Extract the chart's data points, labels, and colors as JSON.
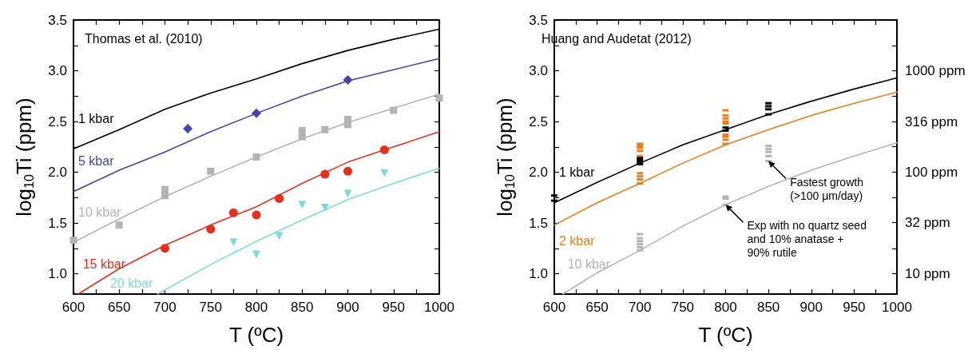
{
  "chart_data": [
    {
      "type": "line",
      "title": "Thomas et al. (2010)",
      "xlabel": "T (ºC)",
      "ylabel": "log$_{10}$Ti (ppm)",
      "legend": false,
      "grid": false,
      "xlim": [
        600,
        1000
      ],
      "xticks": [
        600,
        {
          "value": 625,
          "label": null
        },
        650,
        {
          "value": 675,
          "label": null
        },
        700,
        {
          "value": 725,
          "label": null
        },
        750,
        {
          "value": 775,
          "label": null
        },
        800,
        {
          "value": 825,
          "label": null
        },
        850,
        {
          "value": 875,
          "label": null
        },
        900,
        {
          "value": 925,
          "label": null
        },
        950,
        {
          "value": 975,
          "label": null
        },
        1000
      ],
      "ylim": [
        0.8,
        3.5
      ],
      "yticks": [
        {
          "value": 1,
          "label": "1.0"
        },
        {
          "value": 1.25,
          "label": null
        },
        1.5,
        {
          "value": 1.75,
          "label": null
        },
        {
          "value": 2,
          "label": "2.0"
        },
        {
          "value": 2.25,
          "label": null
        },
        2.5,
        {
          "value": 2.75,
          "label": null
        },
        {
          "value": 3,
          "label": "3.0"
        },
        {
          "value": 3.25,
          "label": null
        },
        3.5
      ],
      "series": [
        {
          "name": "1 kbar",
          "type": "line",
          "marker": "none",
          "color": "#000000",
          "x": [
            600,
            650,
            700,
            750,
            800,
            850,
            900,
            950,
            1000
          ],
          "values": [
            2.23,
            2.42,
            2.62,
            2.78,
            2.92,
            3.07,
            3.2,
            3.31,
            3.41
          ]
        },
        {
          "name": "5 kbar",
          "type": "line",
          "marker": "none",
          "color": "#3f48a8",
          "x": [
            600,
            650,
            700,
            750,
            800,
            850,
            900,
            950,
            1000
          ],
          "values": [
            1.81,
            2.02,
            2.2,
            2.4,
            2.58,
            2.75,
            2.9,
            3.01,
            3.12
          ]
        },
        {
          "name": "10 kbar",
          "type": "line",
          "marker": "none",
          "color": "#b4b4b4",
          "x": [
            600,
            650,
            700,
            750,
            800,
            850,
            900,
            950,
            1000
          ],
          "values": [
            1.31,
            1.54,
            1.76,
            1.96,
            2.15,
            2.33,
            2.49,
            2.63,
            2.77
          ]
        },
        {
          "name": "15 kbar",
          "type": "line",
          "marker": "none",
          "color": "#e2321f",
          "x": [
            605,
            650,
            700,
            750,
            800,
            850,
            900,
            950,
            1000
          ],
          "values": [
            0.8,
            1.05,
            1.28,
            1.48,
            1.66,
            1.89,
            2.1,
            2.25,
            2.4
          ]
        },
        {
          "name": "20 kbar",
          "type": "line",
          "marker": "none",
          "color": "#7fdcd4",
          "x": [
            692,
            750,
            800,
            850,
            900,
            950,
            1000
          ],
          "values": [
            0.8,
            1.09,
            1.32,
            1.53,
            1.73,
            1.89,
            2.04
          ]
        },
        {
          "type": "scatter",
          "marker": "diamond",
          "color": "#3f48a8",
          "x": [
            725,
            800,
            900
          ],
          "values": [
            2.43,
            2.58,
            2.91
          ]
        },
        {
          "type": "scatter",
          "marker": "square",
          "color": "#b4b4b4",
          "x": [
            600,
            650,
            700,
            700,
            750,
            800,
            850,
            850,
            875,
            900,
            900,
            950,
            1000
          ],
          "values": [
            1.33,
            1.48,
            1.83,
            1.77,
            2.01,
            2.15,
            2.41,
            2.35,
            2.42,
            2.52,
            2.47,
            2.61,
            2.73
          ]
        },
        {
          "type": "scatter",
          "marker": "circle",
          "color": "#e2321f",
          "x": [
            700,
            750,
            775,
            800,
            825,
            875,
            900,
            940
          ],
          "values": [
            1.25,
            1.44,
            1.6,
            1.58,
            1.74,
            1.98,
            2.01,
            2.22
          ]
        },
        {
          "type": "scatter",
          "marker": "triangle",
          "color": "#7fdcd4",
          "x": [
            775,
            800,
            825,
            850,
            875,
            900,
            940
          ],
          "values": [
            1.31,
            1.19,
            1.37,
            1.68,
            1.65,
            1.79,
            1.99
          ]
        }
      ]
    },
    {
      "type": "line",
      "title": "Huang and Audetat (2012)",
      "xlabel": "T (ºC)",
      "ylabel": "log$_{10}$Ti (ppm)",
      "legend": false,
      "grid": false,
      "xlim": [
        600,
        1000
      ],
      "xticks": [
        600,
        {
          "value": 625,
          "label": null
        },
        650,
        {
          "value": 675,
          "label": null
        },
        700,
        {
          "value": 725,
          "label": null
        },
        750,
        {
          "value": 775,
          "label": null
        },
        800,
        {
          "value": 825,
          "label": null
        },
        850,
        {
          "value": 875,
          "label": null
        },
        900,
        {
          "value": 925,
          "label": null
        },
        950,
        {
          "value": 975,
          "label": null
        },
        1000
      ],
      "ylim": [
        0.8,
        3.5
      ],
      "yticks": [
        {
          "value": 1,
          "label": "1.0"
        },
        {
          "value": 1.25,
          "label": null
        },
        1.5,
        {
          "value": 1.75,
          "label": null
        },
        {
          "value": 2,
          "label": "2.0"
        },
        {
          "value": 2.25,
          "label": null
        },
        2.5,
        {
          "value": 2.75,
          "label": null
        },
        {
          "value": 3,
          "label": "3.0"
        },
        {
          "value": 3.25,
          "label": null
        },
        3.5
      ],
      "log": "y2",
      "y2lim": [
        6.31,
        3162
      ],
      "y2ticks": [
        {
          "value": 10,
          "label": "10 ppm"
        },
        {
          "value": 17.8,
          "label": null
        },
        {
          "value": 32,
          "label": "32 ppm"
        },
        {
          "value": 56.2,
          "label": null
        },
        {
          "value": 100,
          "label": "100 ppm"
        },
        {
          "value": 178,
          "label": null
        },
        {
          "value": 316,
          "label": "316 ppm"
        },
        {
          "value": 562,
          "label": null
        },
        {
          "value": 1000,
          "label": "1000 ppm"
        },
        {
          "value": 1778,
          "label": null
        }
      ],
      "annotations": [
        {
          "text": "Fastest growth\n(>100 μm/day)",
          "x": 850,
          "y": 2.11
        },
        {
          "text": "Exp with no quartz seed\nand 10% anatase +\n90% rutile",
          "x": 800,
          "y": 1.68
        }
      ],
      "series": [
        {
          "name": "1 kbar",
          "type": "line",
          "marker": "none",
          "color": "#000000",
          "x": [
            600,
            650,
            700,
            750,
            800,
            850,
            900,
            950,
            1000
          ],
          "values": [
            1.7,
            1.9,
            2.09,
            2.27,
            2.42,
            2.57,
            2.7,
            2.82,
            2.93
          ]
        },
        {
          "name": "2 kbar",
          "type": "line",
          "marker": "none",
          "color": "#e87e22",
          "x": [
            600,
            650,
            700,
            750,
            800,
            850,
            900,
            950,
            1000
          ],
          "values": [
            1.48,
            1.7,
            1.89,
            2.09,
            2.27,
            2.42,
            2.56,
            2.68,
            2.79
          ]
        },
        {
          "name": "10 kbar",
          "type": "line",
          "marker": "none",
          "color": "#b4b4b4",
          "x": [
            610,
            650,
            700,
            750,
            800,
            850,
            900,
            950,
            1000
          ],
          "values": [
            0.8,
            1.01,
            1.23,
            1.47,
            1.68,
            1.86,
            2.02,
            2.16,
            2.29
          ]
        },
        {
          "type": "scatter",
          "marker": "square",
          "color": "#e87e22",
          "x": [
            700,
            700,
            700,
            700,
            700,
            700,
            700,
            700,
            700,
            800,
            800,
            800,
            800,
            800,
            800,
            800,
            800,
            800
          ],
          "values": [
            2.28,
            2.26,
            2.24,
            2.21,
            2.16,
            1.99,
            1.96,
            1.93,
            1.89,
            2.61,
            2.56,
            2.53,
            2.5,
            2.48,
            2.37,
            2.35,
            2.32,
            2.28
          ]
        },
        {
          "type": "scatter",
          "marker": "square",
          "color": "#000000",
          "x": [
            600,
            600,
            700,
            700,
            700,
            700,
            800,
            800,
            850,
            850,
            850,
            850
          ],
          "values": [
            1.77,
            1.72,
            2.14,
            2.12,
            2.1,
            2.08,
            2.44,
            2.41,
            2.68,
            2.65,
            2.62,
            2.57
          ]
        },
        {
          "type": "scatter",
          "marker": "square",
          "color": "#b4b4b4",
          "x": [
            700,
            700,
            700,
            700,
            700,
            700,
            800,
            800,
            800,
            850,
            850,
            850,
            850,
            850
          ],
          "values": [
            1.39,
            1.35,
            1.32,
            1.29,
            1.26,
            1.23,
            1.76,
            1.74,
            1.68,
            2.26,
            2.23,
            2.2,
            2.16,
            2.11
          ]
        }
      ]
    }
  ]
}
